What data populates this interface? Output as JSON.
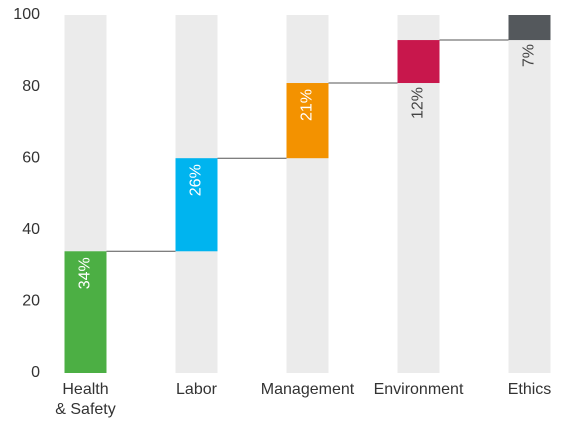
{
  "chart_data": {
    "type": "waterfall",
    "categories": [
      "Health & Safety",
      "Labor",
      "Management",
      "Environment",
      "Ethics"
    ],
    "values": [
      34,
      26,
      21,
      12,
      7
    ],
    "value_labels": [
      "34%",
      "26%",
      "21%",
      "12%",
      "7%"
    ],
    "colors": [
      "#4caf44",
      "#00b4ef",
      "#f39200",
      "#c8174c",
      "#54585c"
    ],
    "ylim": [
      0,
      100
    ],
    "yticks": [
      0,
      20,
      40,
      60,
      80,
      100
    ],
    "grid": false
  }
}
